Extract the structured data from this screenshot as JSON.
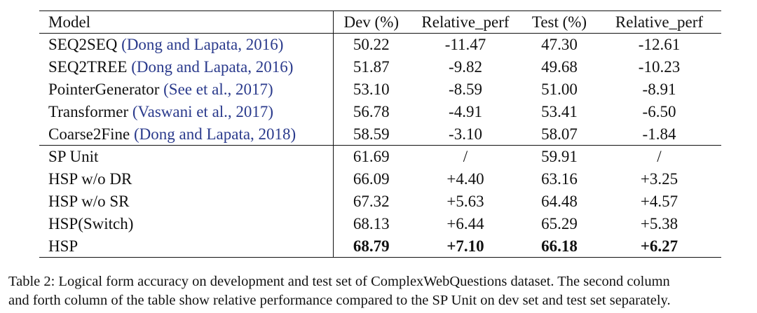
{
  "table": {
    "headers": [
      "Model",
      "Dev (%)",
      "Relative_perf",
      "Test (%)",
      "Relative_perf"
    ],
    "baselines": [
      {
        "name": "SEQ2SEQ",
        "cite": "(Dong and Lapata, 2016)",
        "dev": "50.22",
        "rel_dev": "-11.47",
        "test": "47.30",
        "rel_test": "-12.61"
      },
      {
        "name": "SEQ2TREE",
        "cite": "(Dong and Lapata, 2016)",
        "dev": "51.87",
        "rel_dev": "-9.82",
        "test": "49.68",
        "rel_test": "-10.23"
      },
      {
        "name": "PointerGenerator",
        "cite": "(See et al., 2017)",
        "dev": "53.10",
        "rel_dev": "-8.59",
        "test": "51.00",
        "rel_test": "-8.91"
      },
      {
        "name": "Transformer",
        "cite": "(Vaswani et al., 2017)",
        "dev": "56.78",
        "rel_dev": "-4.91",
        "test": "53.41",
        "rel_test": "-6.50"
      },
      {
        "name": "Coarse2Fine",
        "cite": "(Dong and Lapata, 2018)",
        "dev": "58.59",
        "rel_dev": "-3.10",
        "test": "58.07",
        "rel_test": "-1.84"
      }
    ],
    "ours": [
      {
        "name": "SP Unit",
        "dev": "61.69",
        "rel_dev": "/",
        "test": "59.91",
        "rel_test": "/"
      },
      {
        "name": "HSP w/o DR",
        "dev": "66.09",
        "rel_dev": "+4.40",
        "test": "63.16",
        "rel_test": "+3.25"
      },
      {
        "name": "HSP w/o SR",
        "dev": "67.32",
        "rel_dev": "+5.63",
        "test": "64.48",
        "rel_test": "+4.57"
      },
      {
        "name": "HSP(Switch)",
        "dev": "68.13",
        "rel_dev": "+6.44",
        "test": "65.29",
        "rel_test": "+5.38"
      },
      {
        "name": "HSP",
        "dev": "68.79",
        "rel_dev": "+7.10",
        "test": "66.18",
        "rel_test": "+6.27"
      }
    ]
  },
  "caption": {
    "line1": "Table 2: Logical form accuracy on development and test set of ComplexWebQuestions dataset. The second column",
    "line2": "and forth column of the table show relative performance compared to the SP Unit on dev set and test set separately."
  },
  "colors": {
    "citation": "#2a3a8c",
    "text": "#111111"
  }
}
